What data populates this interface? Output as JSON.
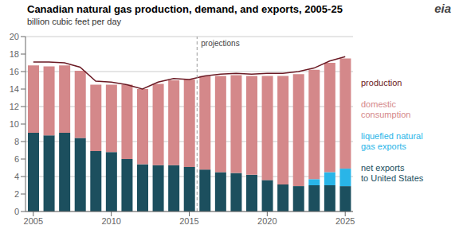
{
  "chart_data": {
    "type": "bar",
    "title": "Canadian natural gas production, demand, and exports, 2005-25",
    "ylabel": "billion cubic feet per day",
    "x": [
      2005,
      2006,
      2007,
      2008,
      2009,
      2010,
      2011,
      2012,
      2013,
      2014,
      2015,
      2016,
      2017,
      2018,
      2019,
      2020,
      2021,
      2022,
      2023,
      2024,
      2025
    ],
    "xlim": [
      2004.5,
      2025.5
    ],
    "xticks": [
      2005,
      2010,
      2015,
      2020,
      2025
    ],
    "ylim": [
      0,
      20
    ],
    "yticks": [
      0,
      2,
      4,
      6,
      8,
      10,
      12,
      14,
      16,
      18,
      20
    ],
    "grid": true,
    "stacked": true,
    "legend": "right",
    "series": [
      {
        "name": "net exports\nto United States",
        "type": "bar",
        "color": "#1c4f5e",
        "values": [
          9.0,
          8.7,
          9.0,
          8.4,
          6.9,
          6.8,
          6.0,
          5.4,
          5.3,
          5.3,
          5.1,
          4.8,
          4.5,
          4.4,
          4.2,
          3.6,
          3.1,
          2.9,
          3.0,
          3.0,
          2.9
        ]
      },
      {
        "name": "liquefied natural\ngas exports",
        "type": "bar",
        "color": "#29b5e8",
        "values": [
          0.0,
          0.0,
          0.0,
          0.0,
          0.0,
          0.0,
          0.0,
          0.0,
          0.0,
          0.0,
          0.0,
          0.0,
          0.0,
          0.0,
          0.0,
          0.0,
          0.0,
          0.0,
          0.7,
          1.5,
          2.0
        ]
      },
      {
        "name": "domestic\nconsumption",
        "type": "bar",
        "color": "#d4888a",
        "values": [
          7.7,
          7.9,
          7.7,
          7.7,
          7.6,
          7.7,
          8.5,
          8.6,
          9.3,
          9.7,
          10.0,
          10.7,
          11.0,
          11.2,
          11.3,
          11.9,
          12.4,
          12.8,
          12.5,
          12.5,
          12.6
        ]
      },
      {
        "name": "production",
        "type": "line",
        "color": "#6b1a24",
        "values": [
          17.1,
          17.1,
          17.0,
          16.5,
          14.9,
          14.8,
          14.5,
          14.0,
          14.8,
          15.2,
          15.1,
          15.5,
          15.7,
          15.8,
          15.7,
          15.8,
          15.8,
          16.0,
          16.4,
          17.2,
          17.7
        ]
      }
    ],
    "annotations": [
      {
        "text": "projections",
        "x": 2015.5,
        "line_style": "dashed"
      },
      {
        "text": "eia"
      }
    ]
  }
}
